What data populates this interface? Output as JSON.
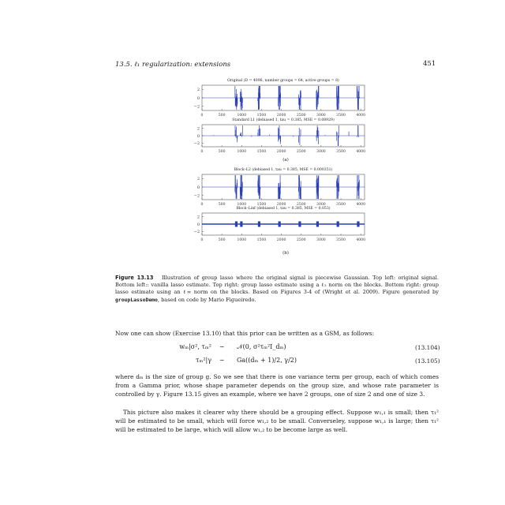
{
  "header": {
    "section": "13.5.  ℓ₁ regularization: extensions",
    "page_number": "451"
  },
  "figure": {
    "panel_a_label": "(a)",
    "panel_b_label": "(b)",
    "plots": [
      {
        "title": "Original (D = 4096, number groups = 64, active groups = 8)"
      },
      {
        "title": "Standard L1 (debiased 1, tau = 0.385, MSE = 0.08929)"
      },
      {
        "title": "Block–L2 (debiased 1, tau = 0.385, MSE = 0.000351)"
      },
      {
        "title": "Block–Linf (debiased 1, tau = 0.385, MSE = 0.053)"
      }
    ],
    "x_ticks": [
      "0",
      "500",
      "1000",
      "1500",
      "2000",
      "2500",
      "3000",
      "3500",
      "4000"
    ],
    "y_ticks": [
      "2",
      "0",
      "−2"
    ]
  },
  "chart_data": [
    {
      "type": "line",
      "title": "Original (D = 4096, number groups = 64, active groups = 8)",
      "xlim": [
        0,
        4096
      ],
      "ylim": [
        -3,
        3
      ],
      "active_group_starts": [
        832,
        960,
        1408,
        1920,
        2432,
        2880,
        3392,
        3904
      ],
      "group_size": 64
    },
    {
      "type": "line",
      "title": "Standard L1 (debiased 1, tau = 0.385, MSE = 0.08929)",
      "xlim": [
        0,
        4096
      ],
      "ylim": [
        -3,
        3
      ]
    },
    {
      "type": "line",
      "title": "Block–L2 (debiased 1, tau = 0.385, MSE = 0.000351)",
      "xlim": [
        0,
        4096
      ],
      "ylim": [
        -3,
        3
      ]
    },
    {
      "type": "line",
      "title": "Block–Linf (debiased 1, tau = 0.385, MSE = 0.053)",
      "xlim": [
        0,
        4096
      ],
      "ylim": [
        -3,
        3
      ]
    }
  ],
  "caption": {
    "label": "Figure 13.13",
    "text_1": "Illustration of group lasso where the original signal is piecewise Gaussian. Top left: original signal. Bottom left:: vanilla lasso estimate. Top right: group lasso estimate using a ℓ₂ norm on the blocks. Bottom right: group lasso estimate using an ℓ∞ norm on the blocks. Based on Figures 3-4 of (Wright et al. 2009). Figure generated by ",
    "code": "groupLassoDemo",
    "text_2": ", based on code by Mario Figueiredo."
  },
  "body": {
    "intro": "Now one can show (Exercise 13.10) that this prior can be written as a GSM, as follows:",
    "eq1_lhs": "wₘ|σ², τₘ²",
    "eq1_rel": "∼",
    "eq1_rhs": "𝒩(0, σ²τₘ²I_dₘ)",
    "eq1_num": "(13.104)",
    "eq2_lhs": "τₘ²|γ",
    "eq2_rel": "∼",
    "eq2_rhs": "Ga((dₘ + 1)/2, γ/2)",
    "eq2_num": "(13.105)",
    "para1": "where dₘ is the size of group g. So we see that there is one variance term per group, each of which comes from a Gamma prior, whose shape parameter depends on the group size, and whose rate parameter is controlled by γ. Figure 13.15 gives an example, where we have 2 groups, one of size 2 and one of size 3.",
    "para2": "This picture also makes it clearer why there should be a grouping effect. Suppose w₁,₁ is small; then τ₁² will be estimated to be small, which will force w₁,₂ to be small. Converseley, suppose w₁,₁ is large; then τ₁² will be estimated to be large, which will allow w₁,₂ to be become large as well."
  },
  "colors": {
    "signal": "#2a3fb3",
    "axis": "#333333",
    "text": "#1a1a1a"
  }
}
